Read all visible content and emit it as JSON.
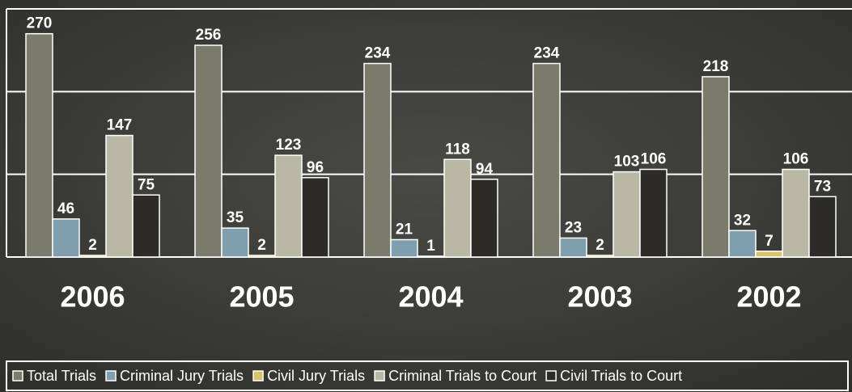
{
  "chart_data": {
    "type": "bar",
    "categories": [
      "2006",
      "2005",
      "2004",
      "2003",
      "2002"
    ],
    "series": [
      {
        "name": "Total Trials",
        "color": "#7b7b6b",
        "values": [
          270,
          256,
          234,
          234,
          218
        ]
      },
      {
        "name": "Criminal Jury Trials",
        "color": "#7f9eae",
        "values": [
          46,
          35,
          21,
          23,
          32
        ]
      },
      {
        "name": "Civil Jury Trials",
        "color": "#d8c26a",
        "values": [
          2,
          2,
          1,
          2,
          7
        ]
      },
      {
        "name": "Criminal Trials to Court",
        "color": "#b8b8a5",
        "values": [
          147,
          123,
          118,
          103,
          106
        ]
      },
      {
        "name": "Civil Trials to Court",
        "color": "#2d2b27",
        "values": [
          75,
          96,
          94,
          106,
          73
        ]
      }
    ],
    "ylim": [
      0,
      300
    ],
    "yticks": [
      0,
      100,
      200,
      300
    ],
    "grid": true
  }
}
